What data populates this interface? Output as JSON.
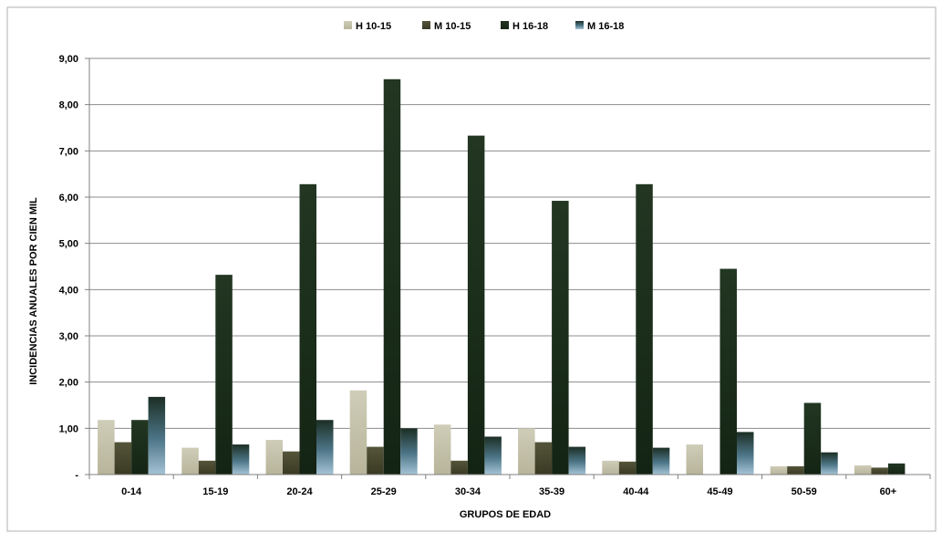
{
  "chart_data": {
    "type": "bar",
    "title": "",
    "xlabel": "GRUPOS DE EDAD",
    "ylabel": "INCIDENCIAS ANUALES POR CIEN MIL",
    "ylim": [
      0,
      9
    ],
    "yticks": [
      "-",
      "1,00",
      "2,00",
      "3,00",
      "4,00",
      "5,00",
      "6,00",
      "7,00",
      "8,00",
      "9,00"
    ],
    "grid": "horizontal",
    "legend_position": "top",
    "categories": [
      "0-14",
      "15-19",
      "20-24",
      "25-29",
      "30-34",
      "35-39",
      "40-44",
      "45-49",
      "50-59",
      "60+"
    ],
    "series": [
      {
        "name": "H 10-15",
        "color": "#c4c1aa",
        "values": [
          1.18,
          0.58,
          0.75,
          1.82,
          1.08,
          1.0,
          0.3,
          0.65,
          0.18,
          0.2
        ]
      },
      {
        "name": "M 10-15",
        "color": "#4a4a30",
        "values": [
          0.7,
          0.3,
          0.5,
          0.6,
          0.3,
          0.7,
          0.28,
          0.0,
          0.18,
          0.15
        ]
      },
      {
        "name": "H 16-18",
        "color": "#1c2e1c",
        "values": [
          1.18,
          4.32,
          6.28,
          8.55,
          7.33,
          5.92,
          6.28,
          4.45,
          1.55,
          0.24
        ]
      },
      {
        "name": "M 16-18",
        "color": "#5a8098",
        "values": [
          1.68,
          0.65,
          1.18,
          1.0,
          0.82,
          0.6,
          0.58,
          0.92,
          0.48,
          0.0
        ]
      }
    ]
  }
}
